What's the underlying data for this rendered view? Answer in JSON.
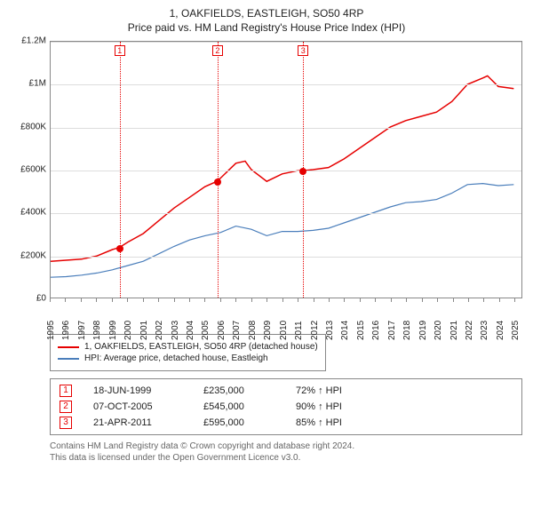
{
  "title": "1, OAKFIELDS, EASTLEIGH, SO50 4RP",
  "subtitle": "Price paid vs. HM Land Registry's House Price Index (HPI)",
  "chart": {
    "ylim": [
      0,
      1200000
    ],
    "xlim": [
      1995,
      2025.5
    ],
    "ytick_step": 200000,
    "yticks": [
      "£0",
      "£200K",
      "£400K",
      "£600K",
      "£800K",
      "£1M",
      "£1.2M"
    ],
    "xticks": [
      1995,
      1996,
      1997,
      1998,
      1999,
      2000,
      2001,
      2002,
      2003,
      2004,
      2005,
      2006,
      2007,
      2008,
      2009,
      2010,
      2011,
      2012,
      2013,
      2014,
      2015,
      2016,
      2017,
      2018,
      2019,
      2020,
      2021,
      2022,
      2023,
      2024,
      2025
    ],
    "grid_color": "#dddddd",
    "border_color": "#888888",
    "background_color": "#ffffff",
    "series": [
      {
        "name": "1, OAKFIELDS, EASTLEIGH, SO50 4RP (detached house)",
        "color": "#e60000",
        "width": 1.5,
        "points": [
          [
            1995,
            170000
          ],
          [
            1996,
            175000
          ],
          [
            1997,
            180000
          ],
          [
            1998,
            195000
          ],
          [
            1999,
            225000
          ],
          [
            1999.46,
            235000
          ],
          [
            2000,
            260000
          ],
          [
            2001,
            300000
          ],
          [
            2002,
            360000
          ],
          [
            2003,
            420000
          ],
          [
            2004,
            470000
          ],
          [
            2005,
            520000
          ],
          [
            2005.77,
            545000
          ],
          [
            2006,
            560000
          ],
          [
            2007,
            630000
          ],
          [
            2007.6,
            640000
          ],
          [
            2008,
            600000
          ],
          [
            2009,
            545000
          ],
          [
            2010,
            580000
          ],
          [
            2011,
            595000
          ],
          [
            2011.3,
            595000
          ],
          [
            2012,
            600000
          ],
          [
            2013,
            610000
          ],
          [
            2014,
            650000
          ],
          [
            2015,
            700000
          ],
          [
            2016,
            750000
          ],
          [
            2017,
            800000
          ],
          [
            2018,
            830000
          ],
          [
            2019,
            850000
          ],
          [
            2020,
            870000
          ],
          [
            2021,
            920000
          ],
          [
            2022,
            1000000
          ],
          [
            2023,
            1030000
          ],
          [
            2023.3,
            1040000
          ],
          [
            2024,
            990000
          ],
          [
            2025,
            980000
          ]
        ]
      },
      {
        "name": "HPI: Average price, detached house, Eastleigh",
        "color": "#4a7ebb",
        "width": 1.2,
        "points": [
          [
            1995,
            95000
          ],
          [
            1996,
            98000
          ],
          [
            1997,
            105000
          ],
          [
            1998,
            115000
          ],
          [
            1999,
            130000
          ],
          [
            2000,
            150000
          ],
          [
            2001,
            170000
          ],
          [
            2002,
            205000
          ],
          [
            2003,
            240000
          ],
          [
            2004,
            270000
          ],
          [
            2005,
            290000
          ],
          [
            2006,
            305000
          ],
          [
            2007,
            335000
          ],
          [
            2008,
            320000
          ],
          [
            2009,
            290000
          ],
          [
            2010,
            310000
          ],
          [
            2011,
            310000
          ],
          [
            2012,
            315000
          ],
          [
            2013,
            325000
          ],
          [
            2014,
            350000
          ],
          [
            2015,
            375000
          ],
          [
            2016,
            400000
          ],
          [
            2017,
            425000
          ],
          [
            2018,
            445000
          ],
          [
            2019,
            450000
          ],
          [
            2020,
            460000
          ],
          [
            2021,
            490000
          ],
          [
            2022,
            530000
          ],
          [
            2023,
            535000
          ],
          [
            2024,
            525000
          ],
          [
            2025,
            530000
          ]
        ]
      }
    ],
    "sale_markers": [
      {
        "n": 1,
        "year": 1999.46,
        "price": 235000,
        "color": "#e60000"
      },
      {
        "n": 2,
        "year": 2005.77,
        "price": 545000,
        "color": "#e60000"
      },
      {
        "n": 3,
        "year": 2011.3,
        "price": 595000,
        "color": "#e60000"
      }
    ]
  },
  "legend": [
    {
      "color": "#e60000",
      "label": "1, OAKFIELDS, EASTLEIGH, SO50 4RP (detached house)"
    },
    {
      "color": "#4a7ebb",
      "label": "HPI: Average price, detached house, Eastleigh"
    }
  ],
  "sales": [
    {
      "n": "1",
      "date": "18-JUN-1999",
      "price": "£235,000",
      "hpi": "72% ↑ HPI",
      "color": "#e60000"
    },
    {
      "n": "2",
      "date": "07-OCT-2005",
      "price": "£545,000",
      "hpi": "90% ↑ HPI",
      "color": "#e60000"
    },
    {
      "n": "3",
      "date": "21-APR-2011",
      "price": "£595,000",
      "hpi": "85% ↑ HPI",
      "color": "#e60000"
    }
  ],
  "footer1": "Contains HM Land Registry data © Crown copyright and database right 2024.",
  "footer2": "This data is licensed under the Open Government Licence v3.0."
}
